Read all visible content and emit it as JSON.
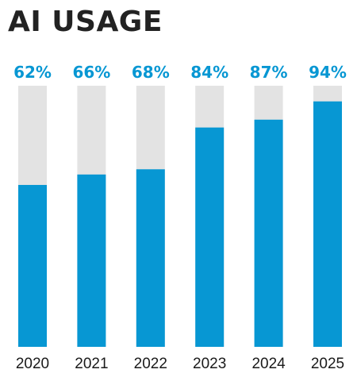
{
  "title": "AI USAGE",
  "colors": {
    "bar_fill": "#0797d3",
    "bar_track": "#e3e3e3",
    "value_label": "#0797d3",
    "year_label": "#1a1a1a",
    "title": "#222222"
  },
  "chart_data": {
    "type": "bar",
    "title": "AI USAGE",
    "categories": [
      "2020",
      "2021",
      "2022",
      "2023",
      "2024",
      "2025"
    ],
    "values": [
      62,
      66,
      68,
      84,
      87,
      94
    ],
    "value_labels": [
      "62%",
      "66%",
      "68%",
      "84%",
      "87%",
      "94%"
    ],
    "unit": "%",
    "ylim": [
      0,
      100
    ],
    "grid": false,
    "xlabel": "",
    "ylabel": ""
  }
}
